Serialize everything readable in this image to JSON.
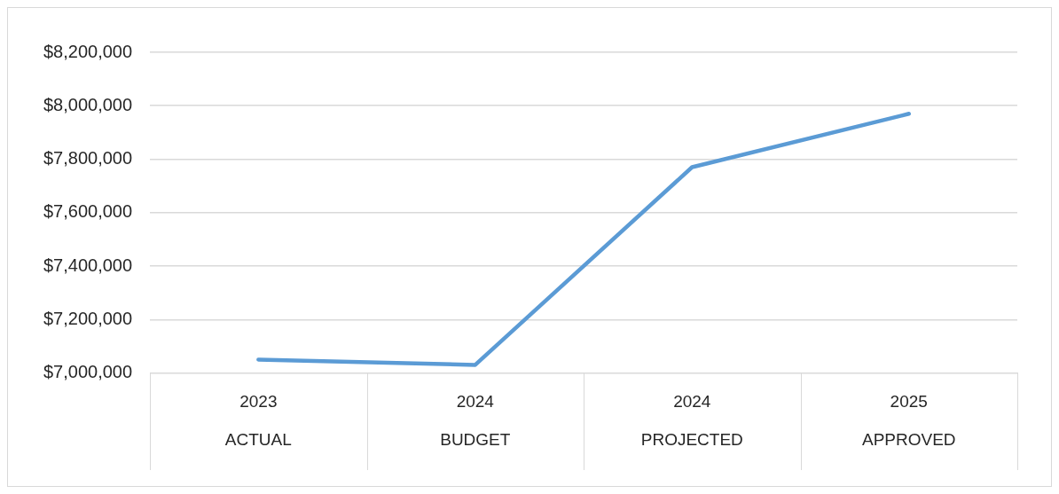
{
  "chart_data": {
    "type": "line",
    "categories": [
      "2023\nACTUAL",
      "2024\nBUDGET",
      "2024\nPROJECTED",
      "2025\nAPPROVED"
    ],
    "series": [
      {
        "color": "#5b9bd5",
        "values": [
          7050000,
          7030000,
          7770000,
          7970000
        ]
      }
    ],
    "ylim": [
      7000000,
      8200000
    ],
    "yticks": [
      {
        "value": 7000000,
        "label": "$7,000,000"
      },
      {
        "value": 7200000,
        "label": "$7,200,000"
      },
      {
        "value": 7400000,
        "label": "$7,400,000"
      },
      {
        "value": 7600000,
        "label": "$7,600,000"
      },
      {
        "value": 7800000,
        "label": "$7,800,000"
      },
      {
        "value": 8000000,
        "label": "$8,000,000"
      },
      {
        "value": 8200000,
        "label": "$8,200,000"
      }
    ],
    "grid": "y",
    "marker": "none",
    "line_style": "solid",
    "legend": false
  }
}
